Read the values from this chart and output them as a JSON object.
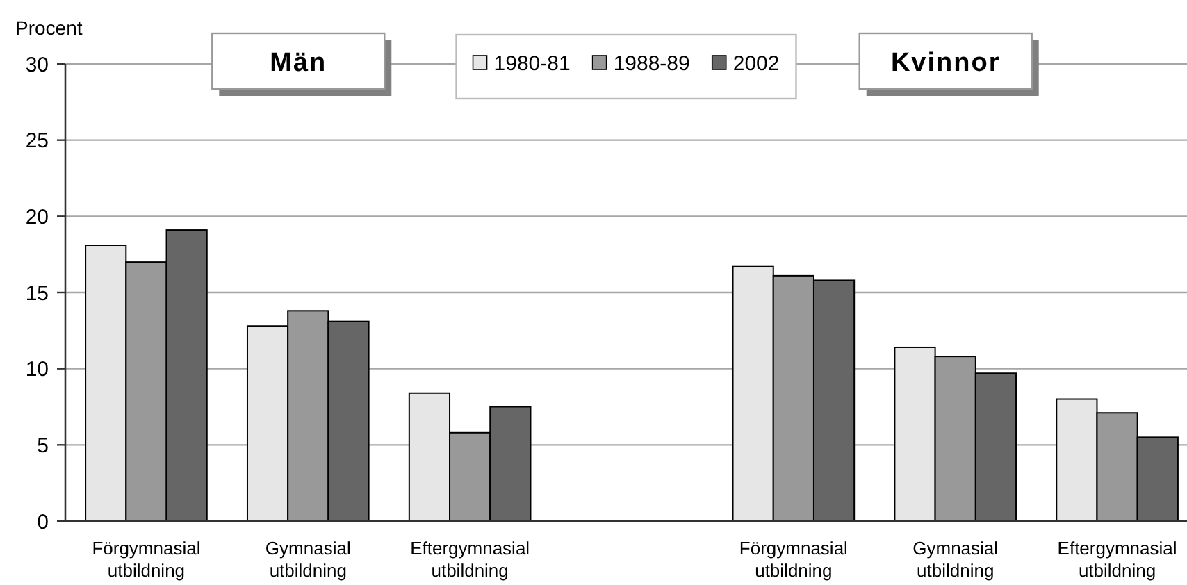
{
  "chart_data": {
    "type": "bar",
    "ylabel": "Procent",
    "categories": [
      "Förgymnasial utbildning",
      "Gymnasial utbildning",
      "Eftergymnasial utbildning",
      null,
      "Förgymnasial utbildning",
      "Gymnasial utbildning",
      "Eftergymnasial utbildning"
    ],
    "series": [
      {
        "name": "1980-81",
        "color": "#e6e6e6",
        "values": [
          18.1,
          12.8,
          8.4,
          null,
          16.7,
          11.4,
          8.0
        ]
      },
      {
        "name": "1988-89",
        "color": "#999999",
        "values": [
          17.0,
          13.8,
          5.8,
          null,
          16.1,
          10.8,
          7.1
        ]
      },
      {
        "name": "2002",
        "color": "#666666",
        "values": [
          19.1,
          13.1,
          7.5,
          null,
          15.8,
          9.7,
          5.5
        ]
      }
    ],
    "ylim": [
      0,
      30
    ],
    "yticks": [
      0,
      5,
      10,
      15,
      20,
      25,
      30
    ],
    "grid": "y",
    "legend": "top",
    "annotations": [
      "Män",
      "Kvinnor"
    ]
  }
}
